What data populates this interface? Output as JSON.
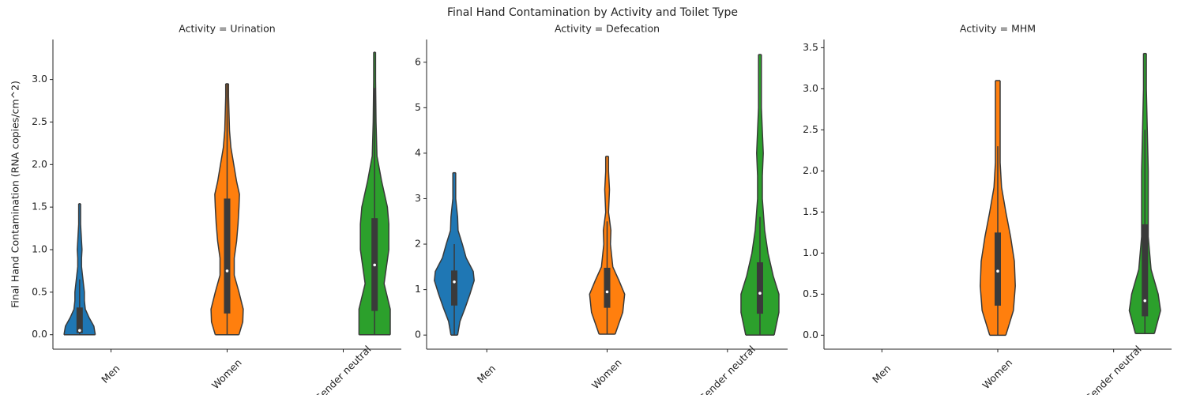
{
  "title": "Final Hand Contamination by Activity and Toilet Type",
  "chart_data": [
    {
      "type": "violin",
      "title": "Activity = Urination",
      "ylabel": "Final Hand Contamination (RNA copies/cm^2)",
      "categories": [
        "Men",
        "Women",
        "Gender neutral"
      ],
      "colors": [
        "#1f77b4",
        "#ff7f0e",
        "#2ca02c"
      ],
      "ylim": [
        -0.17,
        3.47
      ],
      "yticks": [
        {
          "value": 0,
          "label": "0.0"
        },
        0.5,
        {
          "value": 1,
          "label": "1.0"
        },
        1.5,
        {
          "value": 2,
          "label": "2.0"
        },
        2.5,
        {
          "value": 3,
          "label": "3.0"
        }
      ],
      "violins": [
        {
          "kde_y": [
            0,
            0.1,
            0.2,
            0.3,
            0.4,
            0.5,
            0.6,
            0.7,
            0.8,
            0.9,
            1.0,
            1.1,
            1.2,
            1.3,
            1.4,
            1.54
          ],
          "kde_density": [
            0.33,
            0.3,
            0.2,
            0.12,
            0.1,
            0.1,
            0.08,
            0.06,
            0.04,
            0.04,
            0.05,
            0.04,
            0.03,
            0.02,
            0.02,
            0.02
          ],
          "whisker_low": 0,
          "q1": 0.02,
          "median": 0.05,
          "q3": 0.32,
          "whisker_high": 0.65
        },
        {
          "kde_y": [
            0,
            0.15,
            0.3,
            0.5,
            0.7,
            0.9,
            1.1,
            1.3,
            1.5,
            1.65,
            1.8,
            2.0,
            2.2,
            2.4,
            2.6,
            2.8,
            2.95
          ],
          "kde_density": [
            0.25,
            0.33,
            0.34,
            0.25,
            0.15,
            0.15,
            0.2,
            0.23,
            0.25,
            0.26,
            0.2,
            0.14,
            0.08,
            0.05,
            0.04,
            0.03,
            0.03
          ],
          "whisker_low": 0,
          "q1": 0.25,
          "median": 0.75,
          "q3": 1.6,
          "whisker_high": 2.95
        },
        {
          "kde_y": [
            0,
            0.3,
            0.6,
            0.8,
            1.0,
            1.3,
            1.5,
            1.8,
            2.1,
            2.5,
            3.0,
            3.32
          ],
          "kde_density": [
            0.33,
            0.33,
            0.2,
            0.25,
            0.3,
            0.3,
            0.27,
            0.15,
            0.05,
            0.03,
            0.02,
            0.02
          ],
          "whisker_low": 0,
          "q1": 0.28,
          "median": 0.82,
          "q3": 1.37,
          "whisker_high": 2.9
        }
      ]
    },
    {
      "type": "violin",
      "title": "Activity = Defecation",
      "categories": [
        "Men",
        "Women",
        "Gender neutral"
      ],
      "colors": [
        "#1f77b4",
        "#ff7f0e",
        "#2ca02c"
      ],
      "ylim": [
        -0.31,
        6.5
      ],
      "yticks": [
        0,
        1,
        2,
        3,
        4,
        5,
        6
      ],
      "violins": [
        {
          "kde_y": [
            0,
            0.3,
            0.6,
            0.9,
            1.2,
            1.4,
            1.7,
            2.0,
            2.3,
            2.6,
            3.0,
            3.57
          ],
          "kde_density": [
            0.07,
            0.12,
            0.23,
            0.33,
            0.42,
            0.4,
            0.25,
            0.17,
            0.08,
            0.07,
            0.03,
            0.03
          ],
          "whisker_low": 0,
          "q1": 0.65,
          "median": 1.17,
          "q3": 1.42,
          "whisker_high": 2.0
        },
        {
          "kde_y": [
            0.02,
            0.5,
            0.9,
            1.2,
            1.5,
            2.0,
            2.3,
            2.7,
            3.2,
            3.6,
            3.93
          ],
          "kde_density": [
            0.17,
            0.33,
            0.37,
            0.25,
            0.12,
            0.07,
            0.08,
            0.03,
            0.05,
            0.03,
            0.03
          ],
          "whisker_low": 0.02,
          "q1": 0.6,
          "median": 0.95,
          "q3": 1.48,
          "whisker_high": 2.5
        },
        {
          "kde_y": [
            0,
            0.5,
            0.9,
            1.3,
            1.8,
            2.3,
            3.0,
            3.5,
            4.0,
            4.5,
            5.0,
            5.5,
            6.17
          ],
          "kde_density": [
            0.3,
            0.4,
            0.4,
            0.28,
            0.17,
            0.1,
            0.05,
            0.05,
            0.07,
            0.05,
            0.03,
            0.03,
            0.03
          ],
          "whisker_low": 0,
          "q1": 0.47,
          "median": 0.92,
          "q3": 1.6,
          "whisker_high": 2.6
        }
      ]
    },
    {
      "type": "violin",
      "title": "Activity = MHM",
      "categories": [
        "Men",
        "Women",
        "Gender neutral"
      ],
      "colors": [
        "#1f77b4",
        "#ff7f0e",
        "#2ca02c"
      ],
      "ylim": [
        -0.17,
        3.6
      ],
      "yticks": [
        {
          "value": 0,
          "label": "0.0"
        },
        0.5,
        {
          "value": 1,
          "label": "1.0"
        },
        1.5,
        {
          "value": 2,
          "label": "2.0"
        },
        2.5,
        {
          "value": 3,
          "label": "3.0"
        },
        3.5
      ],
      "violins": [
        null,
        {
          "kde_y": [
            0,
            0.3,
            0.6,
            0.9,
            1.2,
            1.5,
            1.8,
            2.1,
            2.4,
            2.7,
            3.1
          ],
          "kde_density": [
            0.17,
            0.33,
            0.37,
            0.35,
            0.27,
            0.17,
            0.08,
            0.05,
            0.05,
            0.05,
            0.05
          ],
          "whisker_low": 0,
          "q1": 0.36,
          "median": 0.78,
          "q3": 1.25,
          "whisker_high": 2.3
        },
        {
          "kde_y": [
            0.02,
            0.3,
            0.5,
            0.8,
            1.2,
            1.6,
            2.0,
            2.5,
            3.0,
            3.43
          ],
          "kde_density": [
            0.2,
            0.33,
            0.28,
            0.13,
            0.07,
            0.07,
            0.07,
            0.05,
            0.03,
            0.03
          ],
          "whisker_low": 0.02,
          "q1": 0.23,
          "median": 0.42,
          "q3": 1.35,
          "whisker_high": 2.5
        }
      ]
    }
  ]
}
